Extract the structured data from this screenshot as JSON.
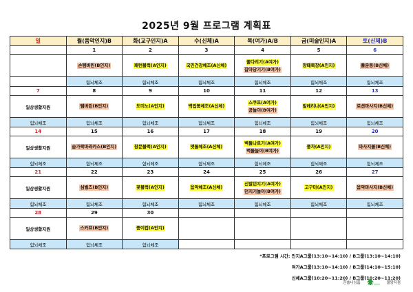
{
  "title": "2025년  9월  프로그램  계획표",
  "colors": {
    "header_bg": "#fcefc6",
    "exercise_bg": "#c8e6f7",
    "highlight_yellow": "#ffff3c",
    "highlight_orange": "#f7c4a6",
    "sunday": "#d0202a",
    "saturday": "#2630b8"
  },
  "headers": [
    "일",
    "월(음악인지)B",
    "화(교구인지)A",
    "수(신체)A",
    "목(여가)A/B",
    "금(미술인지)A",
    "토(신체)B"
  ],
  "weeks": [
    {
      "days": [
        {
          "date": "",
          "acts": [],
          "ex": ""
        },
        {
          "date": "1",
          "acts": [
            {
              "t": "손탬버린(B인지)",
              "c": "o"
            }
          ],
          "ex": "힘뇌체조"
        },
        {
          "date": "2",
          "acts": [
            {
              "t": "패턴블럭(A인지)",
              "c": "y"
            }
          ],
          "ex": "힘뇌체조"
        },
        {
          "date": "3",
          "acts": [
            {
              "t": "국민건강체조(A신체)",
              "c": "y"
            }
          ],
          "ex": "힘뇌체조"
        },
        {
          "date": "4",
          "acts": [
            {
              "t": "줄다리기(A여가)",
              "c": "y"
            },
            {
              "t": "잡아당기기(B여가)",
              "c": "o"
            }
          ],
          "ex": "힘뇌체조"
        },
        {
          "date": "5",
          "acts": [
            {
              "t": "양떼목장(A인지)",
              "c": "y"
            }
          ],
          "ex": "힘뇌체조"
        },
        {
          "date": "6",
          "acts": [
            {
              "t": "풀운동(B신체)",
              "c": "o"
            }
          ],
          "ex": "힘뇌체조"
        }
      ]
    },
    {
      "days": [
        {
          "date": "7",
          "acts": [
            {
              "t": "일상생활지원",
              "c": "p"
            }
          ],
          "ex": "힘뇌체조"
        },
        {
          "date": "8",
          "acts": [
            {
              "t": "템버린(B인지)",
              "c": "o"
            }
          ],
          "ex": "힘뇌체조"
        },
        {
          "date": "9",
          "acts": [
            {
              "t": "도미노(A인지)",
              "c": "y"
            }
          ],
          "ex": "힘뇌체조"
        },
        {
          "date": "10",
          "acts": [
            {
              "t": "백업봉체조(A신체)",
              "c": "y"
            }
          ],
          "ex": "힘뇌체조"
        },
        {
          "date": "11",
          "acts": [
            {
              "t": "스쿠프(A여가)",
              "c": "y"
            },
            {
              "t": "공놀이(B여가)",
              "c": "o"
            }
          ],
          "ex": "힘뇌체조"
        },
        {
          "date": "12",
          "acts": [
            {
              "t": "발레리나(A인지)",
              "c": "y"
            }
          ],
          "ex": "힘뇌체조"
        },
        {
          "date": "13",
          "acts": [
            {
              "t": "로션마사지(B신체)",
              "c": "o"
            }
          ],
          "ex": "힘뇌체조"
        }
      ]
    },
    {
      "days": [
        {
          "date": "14",
          "acts": [
            {
              "t": "일상생활지원",
              "c": "p"
            }
          ],
          "ex": "힘뇌체조"
        },
        {
          "date": "15",
          "acts": [
            {
              "t": "숟가락마라카스(B인지)",
              "c": "o"
            }
          ],
          "ex": "힘뇌체조"
        },
        {
          "date": "16",
          "acts": [
            {
              "t": "창문블럭(A인지)",
              "c": "y"
            }
          ],
          "ex": "힘뇌체조"
        },
        {
          "date": "17",
          "acts": [
            {
              "t": "맷돌체조(A신체)",
              "c": "y"
            }
          ],
          "ex": "힘뇌체조"
        },
        {
          "date": "18",
          "acts": [
            {
              "t": "벽돌나르기(A여가)",
              "c": "y"
            },
            {
              "t": "벽돌놀이(B여가)",
              "c": "o"
            }
          ],
          "ex": "힘뇌체조"
        },
        {
          "date": "19",
          "acts": [
            {
              "t": "풍차(A인지)",
              "c": "y"
            }
          ],
          "ex": "힘뇌체조"
        },
        {
          "date": "20",
          "acts": [
            {
              "t": "마사지볼(B신체)",
              "c": "o"
            }
          ],
          "ex": "힘뇌체조"
        }
      ]
    },
    {
      "days": [
        {
          "date": "21",
          "acts": [
            {
              "t": "일상생활지원",
              "c": "p"
            }
          ],
          "ex": "힘뇌체조"
        },
        {
          "date": "22",
          "acts": [
            {
              "t": "심벌즈(B인지)",
              "c": "o"
            }
          ],
          "ex": "힘뇌체조"
        },
        {
          "date": "23",
          "acts": [
            {
              "t": "꽃블럭(A인지)",
              "c": "y"
            }
          ],
          "ex": "힘뇌체조"
        },
        {
          "date": "24",
          "acts": [
            {
              "t": "음악체조(A신체)",
              "c": "y"
            }
          ],
          "ex": "힘뇌체조"
        },
        {
          "date": "25",
          "acts": [
            {
              "t": "신발던지기(A여가)",
              "c": "y"
            },
            {
              "t": "던지기놀이(B여가)",
              "c": "o"
            }
          ],
          "ex": "힘뇌체조"
        },
        {
          "date": "26",
          "acts": [
            {
              "t": "고구마(A인지)",
              "c": "y"
            }
          ],
          "ex": "힘뇌체조"
        },
        {
          "date": "27",
          "acts": [
            {
              "t": "음악마사지(B신체)",
              "c": "o"
            }
          ],
          "ex": "힘뇌체조"
        }
      ]
    },
    {
      "days": [
        {
          "date": "28",
          "acts": [
            {
              "t": "일상생활지원",
              "c": "p"
            }
          ],
          "ex": "힘뇌체조"
        },
        {
          "date": "29",
          "acts": [
            {
              "t": "스카프(B인지)",
              "c": "o"
            }
          ],
          "ex": "힘뇌체조"
        },
        {
          "date": "30",
          "acts": [
            {
              "t": "종이컵(A인지)",
              "c": "y"
            }
          ],
          "ex": "힘뇌체조"
        },
        {
          "date": "",
          "acts": [],
          "ex": ""
        },
        {
          "date": "",
          "acts": [],
          "ex": ""
        },
        {
          "date": "",
          "acts": [],
          "ex": ""
        },
        {
          "date": "",
          "acts": [],
          "ex": ""
        }
      ]
    }
  ],
  "notes": [
    "*프로그램 시간: 인지A그룹(13:10~14:10) / B그룹(13:10~14:10)",
    "여가A그룹(13:10~14:10) / B그룹(14:10~15:10)",
    "신체A그룹(10:20~11:20) / B그룹(10:20~11:20)"
  ],
  "footer": {
    "org": "한솔너싱홈",
    "branch": "물왕지점"
  }
}
